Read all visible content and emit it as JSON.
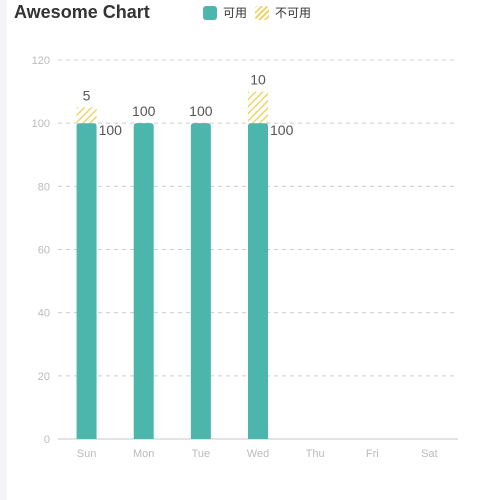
{
  "chart_data": {
    "type": "bar",
    "title": "Awesome Chart",
    "categories": [
      "Sun",
      "Mon",
      "Tue",
      "Wed",
      "Thu",
      "Fri",
      "Sat"
    ],
    "series": [
      {
        "name": "可用",
        "values": [
          100,
          100,
          100,
          100,
          null,
          null,
          null
        ],
        "color": "#4db6ac"
      },
      {
        "name": "不可用",
        "values": [
          5,
          null,
          null,
          10,
          null,
          null,
          null
        ],
        "color": "#f1d36b",
        "pattern": "diagonal-hatch"
      }
    ],
    "ylim": [
      0,
      120
    ],
    "yticks": [
      0,
      20,
      40,
      60,
      80,
      100,
      120
    ],
    "stacked": true,
    "grid": true,
    "legend_position": "top"
  }
}
